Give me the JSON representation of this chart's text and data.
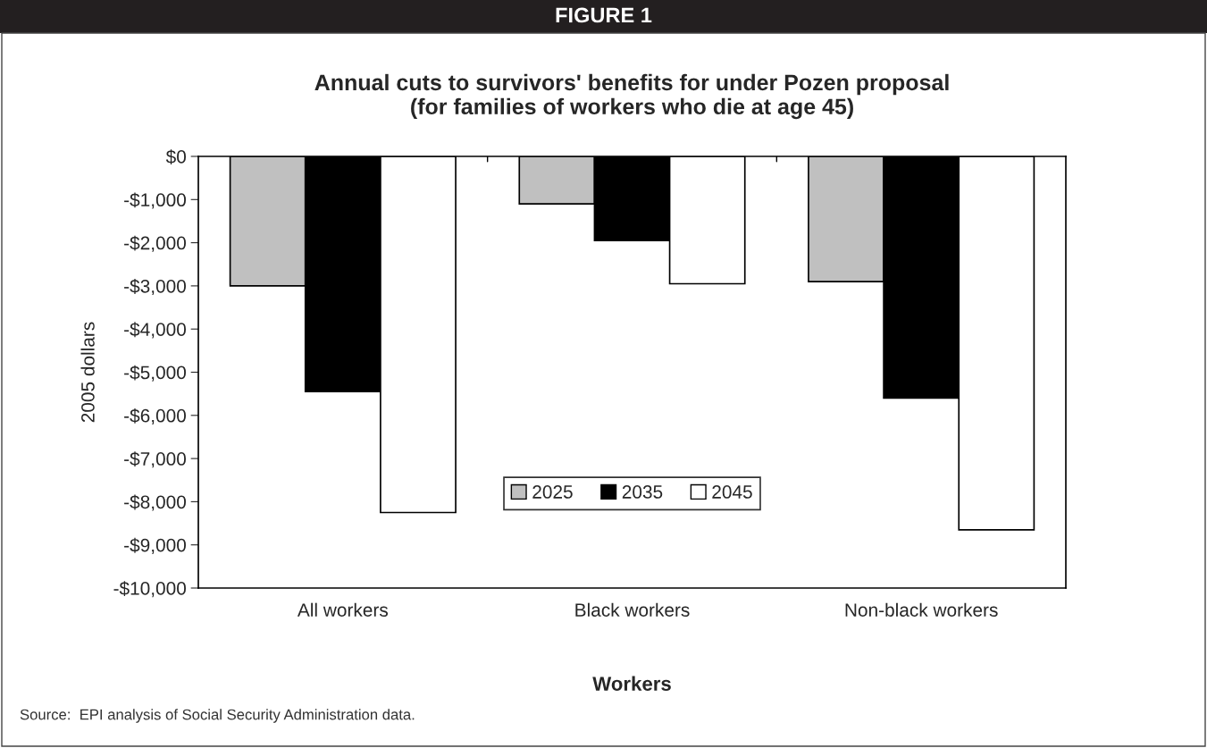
{
  "chart_data": {
    "type": "bar",
    "title": "Annual cuts to survivors' benefits for under Pozen proposal\n(for families of workers who die at age 45)",
    "xlabel": "Workers",
    "ylabel": "2005 dollars",
    "categories": [
      "All workers",
      "Black workers",
      "Non-black workers"
    ],
    "series": [
      {
        "name": "2025",
        "color": "#c0c0c0",
        "values": [
          -3000,
          -1100,
          -2900
        ]
      },
      {
        "name": "2035",
        "color": "#000000",
        "values": [
          -5450,
          -1950,
          -5600
        ]
      },
      {
        "name": "2045",
        "color": "#ffffff",
        "values": [
          -8250,
          -2950,
          -8650
        ]
      }
    ],
    "ylim": [
      -10000,
      0
    ],
    "yticks": [
      {
        "value": 0,
        "label": "$0"
      },
      {
        "value": -1000,
        "label": "-$1,000"
      },
      {
        "value": -2000,
        "label": "-$2,000"
      },
      {
        "value": -3000,
        "label": "-$3,000"
      },
      {
        "value": -4000,
        "label": "-$4,000"
      },
      {
        "value": -5000,
        "label": "-$5,000"
      },
      {
        "value": -6000,
        "label": "-$6,000"
      },
      {
        "value": -7000,
        "label": "-$7,000"
      },
      {
        "value": -8000,
        "label": "-$8,000"
      },
      {
        "value": -9000,
        "label": "-$9,000"
      },
      {
        "value": -10000,
        "label": "-$10,000"
      }
    ],
    "grid": false,
    "legend": "bottom",
    "annotations": [
      "FIGURE 1",
      "Source:  EPI analysis of Social Security Administration data."
    ]
  }
}
